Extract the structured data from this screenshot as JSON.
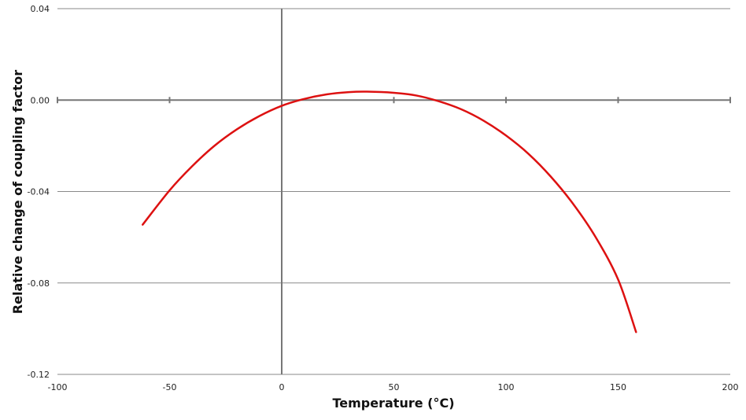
{
  "chart_data": {
    "type": "line",
    "title": "",
    "xlabel": "Temperature (°C)",
    "ylabel": "Relative change of coupling factor",
    "xlim": [
      -100,
      200
    ],
    "ylim": [
      -0.12,
      0.04
    ],
    "x_ticks": [
      -100,
      -50,
      0,
      50,
      100,
      150,
      200
    ],
    "x_tick_labels": [
      "-100",
      "-50",
      "0",
      "50",
      "100",
      "150",
      "200"
    ],
    "y_ticks": [
      0.04,
      0.0,
      -0.04,
      -0.08,
      -0.12
    ],
    "y_tick_labels": [
      "0.04",
      "0.00",
      "-0.04",
      "-0.08",
      "-0.12"
    ],
    "grid": {
      "horizontal": true,
      "vertical": false
    },
    "legend": "none",
    "series": [
      {
        "color": "#dd1111",
        "x": [
          -62,
          -50,
          -40,
          -30,
          -20,
          -10,
          0,
          10,
          20,
          30,
          38,
          50,
          60,
          70,
          80,
          90,
          100,
          110,
          120,
          130,
          140,
          150,
          158
        ],
        "y": [
          -0.0545,
          -0.0395,
          -0.029,
          -0.02,
          -0.0128,
          -0.007,
          -0.0025,
          0.0005,
          0.0025,
          0.0035,
          0.0037,
          0.0032,
          0.002,
          -0.0005,
          -0.004,
          -0.009,
          -0.0155,
          -0.0235,
          -0.0335,
          -0.0455,
          -0.06,
          -0.0785,
          -0.1015
        ]
      }
    ]
  }
}
